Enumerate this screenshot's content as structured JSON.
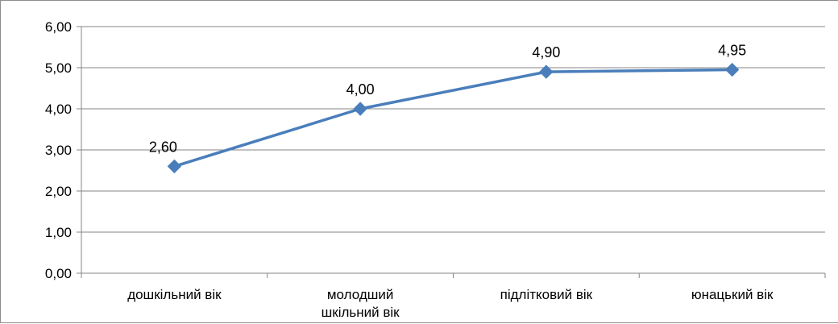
{
  "chart_data": {
    "type": "line",
    "categories": [
      [
        "дошкільний вік"
      ],
      [
        "молодший",
        "шкільний вік"
      ],
      [
        "підлітковий вік"
      ],
      [
        "юнацький вік"
      ]
    ],
    "series": [
      {
        "values": [
          2.6,
          4.0,
          4.9,
          4.95
        ],
        "data_labels": [
          "2,60",
          "4,00",
          "4,90",
          "4,95"
        ],
        "color": "#4a7ebb",
        "marker": "diamond"
      }
    ],
    "y_ticks": [
      {
        "value": 0,
        "label": "0,00"
      },
      {
        "value": 1,
        "label": "1,00"
      },
      {
        "value": 2,
        "label": "2,00"
      },
      {
        "value": 3,
        "label": "3,00"
      },
      {
        "value": 4,
        "label": "4,00"
      },
      {
        "value": 5,
        "label": "5,00"
      },
      {
        "value": 6,
        "label": "6,00"
      }
    ],
    "ylim": [
      0,
      6
    ],
    "grid": "horizontal",
    "legend": "none",
    "gridline_color": "#868686",
    "axis_color": "#868686"
  }
}
